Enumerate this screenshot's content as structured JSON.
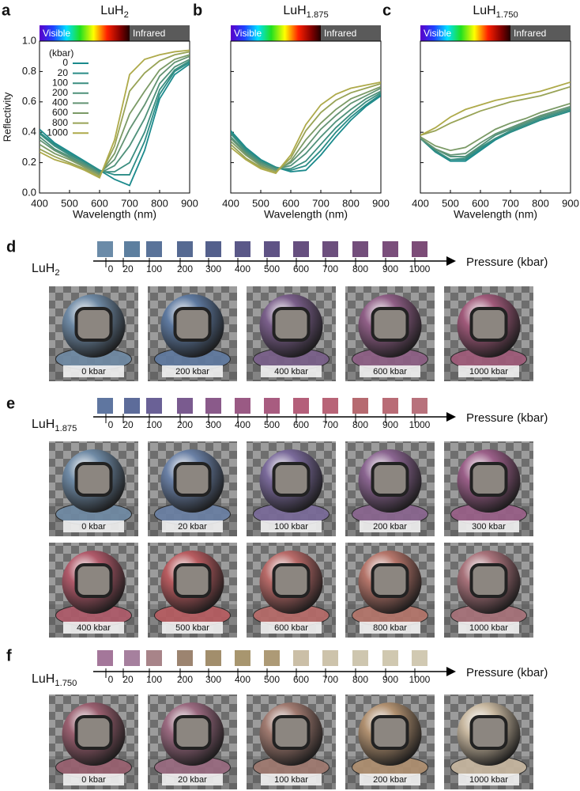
{
  "chart_data": [
    {
      "type": "line",
      "panel_label": "a",
      "title": [
        "LuH",
        "2"
      ],
      "band_labels": [
        "Visible",
        "Infrared"
      ],
      "xlabel": "Wavelength (nm)",
      "ylabel": "Reflectivity",
      "x": [
        400,
        450,
        500,
        550,
        600,
        650,
        700,
        750,
        800,
        850,
        900
      ],
      "xlim": [
        400,
        900
      ],
      "xticks": [
        400,
        500,
        600,
        700,
        800,
        900
      ],
      "ylim": [
        0,
        1.0
      ],
      "yticks": [
        {
          "value": 0,
          "label": "0.0"
        },
        0.2,
        0.4,
        0.6,
        0.8,
        {
          "value": 1.0,
          "label": "1.0"
        }
      ],
      "show_ytick_labels": true,
      "legend": true,
      "legend_title": "(kbar)",
      "series": [
        {
          "name": "0",
          "color": "#1b8a8c",
          "values": [
            0.42,
            0.33,
            0.27,
            0.21,
            0.15,
            0.09,
            0.05,
            0.28,
            0.62,
            0.78,
            0.85
          ]
        },
        {
          "name": "20",
          "color": "#2a8c86",
          "values": [
            0.4,
            0.32,
            0.26,
            0.2,
            0.15,
            0.12,
            0.12,
            0.34,
            0.65,
            0.8,
            0.86
          ]
        },
        {
          "name": "100",
          "color": "#3b8e80",
          "values": [
            0.39,
            0.31,
            0.25,
            0.2,
            0.14,
            0.14,
            0.2,
            0.4,
            0.68,
            0.81,
            0.87
          ]
        },
        {
          "name": "200",
          "color": "#4f917a",
          "values": [
            0.37,
            0.29,
            0.24,
            0.19,
            0.13,
            0.18,
            0.31,
            0.49,
            0.72,
            0.83,
            0.88
          ]
        },
        {
          "name": "400",
          "color": "#639373",
          "values": [
            0.35,
            0.28,
            0.23,
            0.18,
            0.13,
            0.22,
            0.42,
            0.58,
            0.77,
            0.86,
            0.9
          ]
        },
        {
          "name": "600",
          "color": "#7b9a66",
          "values": [
            0.32,
            0.26,
            0.22,
            0.17,
            0.12,
            0.26,
            0.52,
            0.67,
            0.81,
            0.88,
            0.91
          ]
        },
        {
          "name": "800",
          "color": "#98a356",
          "values": [
            0.29,
            0.24,
            0.2,
            0.16,
            0.11,
            0.31,
            0.67,
            0.79,
            0.87,
            0.91,
            0.93
          ]
        },
        {
          "name": "1000",
          "color": "#aeaa4a",
          "values": [
            0.27,
            0.22,
            0.19,
            0.15,
            0.1,
            0.35,
            0.78,
            0.88,
            0.91,
            0.93,
            0.94
          ]
        }
      ]
    },
    {
      "type": "line",
      "panel_label": "b",
      "title": [
        "LuH",
        "1.875"
      ],
      "band_labels": [
        "Visible",
        "Infrared"
      ],
      "xlabel": "Wavelength (nm)",
      "x": [
        400,
        450,
        500,
        550,
        600,
        650,
        700,
        750,
        800,
        850,
        900
      ],
      "xlim": [
        400,
        900
      ],
      "xticks": [
        400,
        500,
        600,
        700,
        800,
        900
      ],
      "ylim": [
        0,
        1.0
      ],
      "yticks": [
        0,
        0.2,
        0.4,
        0.6,
        0.8,
        1.0
      ],
      "show_ytick_labels": false,
      "legend": false,
      "series": [
        {
          "color": "#1b8a8c",
          "values": [
            0.41,
            0.3,
            0.22,
            0.17,
            0.14,
            0.15,
            0.25,
            0.37,
            0.48,
            0.57,
            0.64
          ]
        },
        {
          "color": "#2a8c86",
          "values": [
            0.4,
            0.29,
            0.21,
            0.17,
            0.15,
            0.18,
            0.28,
            0.4,
            0.5,
            0.58,
            0.65
          ]
        },
        {
          "color": "#3b8e80",
          "values": [
            0.39,
            0.28,
            0.21,
            0.16,
            0.16,
            0.21,
            0.32,
            0.43,
            0.52,
            0.6,
            0.66
          ]
        },
        {
          "color": "#4f917a",
          "values": [
            0.37,
            0.27,
            0.2,
            0.16,
            0.18,
            0.26,
            0.37,
            0.47,
            0.55,
            0.62,
            0.67
          ]
        },
        {
          "color": "#639373",
          "values": [
            0.36,
            0.26,
            0.19,
            0.15,
            0.2,
            0.3,
            0.42,
            0.51,
            0.59,
            0.64,
            0.69
          ]
        },
        {
          "color": "#7b9a66",
          "values": [
            0.34,
            0.25,
            0.18,
            0.14,
            0.21,
            0.35,
            0.46,
            0.55,
            0.62,
            0.66,
            0.7
          ]
        },
        {
          "color": "#98a356",
          "values": [
            0.32,
            0.23,
            0.17,
            0.14,
            0.23,
            0.41,
            0.53,
            0.61,
            0.66,
            0.69,
            0.72
          ]
        },
        {
          "color": "#aeaa4a",
          "values": [
            0.3,
            0.22,
            0.16,
            0.13,
            0.25,
            0.45,
            0.58,
            0.65,
            0.69,
            0.71,
            0.73
          ]
        }
      ]
    },
    {
      "type": "line",
      "panel_label": "c",
      "title": [
        "LuH",
        "1.750"
      ],
      "band_labels": [
        "Visible",
        "Infrared"
      ],
      "xlabel": "Wavelength (nm)",
      "x": [
        400,
        450,
        500,
        550,
        600,
        650,
        700,
        750,
        800,
        850,
        900
      ],
      "xlim": [
        400,
        900
      ],
      "xticks": [
        400,
        500,
        600,
        700,
        800,
        900
      ],
      "ylim": [
        0,
        1.0
      ],
      "yticks": [
        0,
        0.2,
        0.4,
        0.6,
        0.8,
        1.0
      ],
      "show_ytick_labels": false,
      "legend": false,
      "series": [
        {
          "color": "#1b8a8c",
          "values": [
            0.36,
            0.27,
            0.21,
            0.21,
            0.28,
            0.35,
            0.4,
            0.44,
            0.48,
            0.51,
            0.54
          ]
        },
        {
          "color": "#2a8c86",
          "values": [
            0.36,
            0.27,
            0.22,
            0.22,
            0.29,
            0.36,
            0.4,
            0.44,
            0.48,
            0.51,
            0.54
          ]
        },
        {
          "color": "#3b8e80",
          "values": [
            0.36,
            0.28,
            0.22,
            0.23,
            0.3,
            0.36,
            0.41,
            0.45,
            0.49,
            0.52,
            0.55
          ]
        },
        {
          "color": "#4f917a",
          "values": [
            0.36,
            0.29,
            0.24,
            0.24,
            0.31,
            0.38,
            0.42,
            0.46,
            0.5,
            0.53,
            0.56
          ]
        },
        {
          "color": "#639373",
          "values": [
            0.36,
            0.29,
            0.25,
            0.26,
            0.33,
            0.39,
            0.43,
            0.47,
            0.51,
            0.54,
            0.57
          ]
        },
        {
          "color": "#7b9a66",
          "values": [
            0.37,
            0.31,
            0.28,
            0.3,
            0.36,
            0.42,
            0.46,
            0.49,
            0.53,
            0.56,
            0.59
          ]
        },
        {
          "color": "#98a356",
          "values": [
            0.38,
            0.41,
            0.46,
            0.5,
            0.54,
            0.57,
            0.6,
            0.62,
            0.64,
            0.67,
            0.7
          ]
        },
        {
          "color": "#aeaa4a",
          "values": [
            0.38,
            0.43,
            0.5,
            0.55,
            0.58,
            0.61,
            0.63,
            0.65,
            0.67,
            0.7,
            0.73
          ]
        }
      ]
    }
  ],
  "panels": [
    {
      "label": "d",
      "material": [
        "LuH",
        "2"
      ],
      "axis_label": "Pressure (kbar)",
      "pressure_ticks": [
        0,
        20,
        100,
        200,
        300,
        400,
        500,
        600,
        700,
        800,
        900,
        1000
      ],
      "swatch_colors": [
        "#6b8ba8",
        "#5d7f9f",
        "#5a7399",
        "#566a92",
        "#54608c",
        "#5a5888",
        "#5f5385",
        "#664f7f",
        "#6c4f7d",
        "#734e7b",
        "#7a4e7b",
        "#7c4c77"
      ],
      "renders": [
        {
          "label": "0 kbar",
          "tint": "#6f8aa5"
        },
        {
          "label": "200 kbar",
          "tint": "#5f7aa0"
        },
        {
          "label": "400 kbar",
          "tint": "#7a5f8a"
        },
        {
          "label": "600 kbar",
          "tint": "#8f5f86"
        },
        {
          "label": "1000 kbar",
          "tint": "#a05a7a"
        }
      ]
    },
    {
      "label": "e",
      "material": [
        "LuH",
        "1.875"
      ],
      "axis_label": "Pressure (kbar)",
      "pressure_ticks": [
        0,
        20,
        100,
        200,
        300,
        400,
        500,
        600,
        700,
        800,
        900,
        1000
      ],
      "swatch_colors": [
        "#5f76a0",
        "#5d6c9a",
        "#6a6196",
        "#7a5b8f",
        "#8a5a8a",
        "#9a5a84",
        "#a85c80",
        "#b45f7a",
        "#b86477",
        "#b66a70",
        "#b96c76",
        "#b8727c"
      ],
      "renders": [
        {
          "label": "0 kbar",
          "tint": "#6f8aa5"
        },
        {
          "label": "20 kbar",
          "tint": "#6a80a5"
        },
        {
          "label": "100 kbar",
          "tint": "#7a6a9a"
        },
        {
          "label": "200 kbar",
          "tint": "#8a6590"
        },
        {
          "label": "300 kbar",
          "tint": "#9a5f88"
        },
        {
          "label": "400 kbar",
          "tint": "#b05a6a"
        },
        {
          "label": "500 kbar",
          "tint": "#b85c60"
        },
        {
          "label": "600 kbar",
          "tint": "#b86a68"
        },
        {
          "label": "800 kbar",
          "tint": "#b5756a"
        },
        {
          "label": "1000 kbar",
          "tint": "#a8727a"
        }
      ]
    },
    {
      "label": "f",
      "material": [
        "LuH",
        "1.750"
      ],
      "axis_label": "Pressure (kbar)",
      "pressure_ticks": [
        0,
        20,
        100,
        200,
        300,
        400,
        500,
        600,
        700,
        800,
        900,
        1000
      ],
      "swatch_colors": [
        "#a4779a",
        "#a6809e",
        "#a88489",
        "#9c8470",
        "#a28e6c",
        "#a8966f",
        "#ad9a76",
        "#cbbfa7",
        "#cdc3ab",
        "#cec6af",
        "#d0c8b0",
        "#d1c9b2"
      ],
      "renders": [
        {
          "label": "0 kbar",
          "tint": "#9a6070"
        },
        {
          "label": "20 kbar",
          "tint": "#9a6a80"
        },
        {
          "label": "100 kbar",
          "tint": "#a07a70"
        },
        {
          "label": "200 kbar",
          "tint": "#b09070"
        },
        {
          "label": "1000 kbar",
          "tint": "#c8b8a0"
        }
      ]
    }
  ]
}
